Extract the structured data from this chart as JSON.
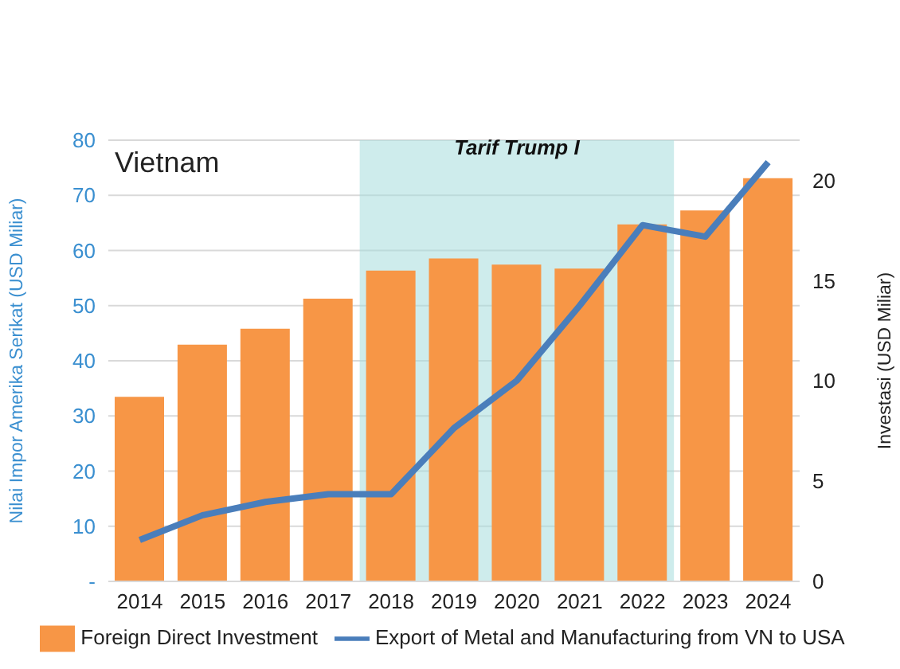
{
  "chart_data": {
    "type": "bar",
    "title": "Vietnam",
    "ylabel": "Nilai Impor Amerika Serikat (USD Miliar)",
    "y2label": "Investasi (USD Miliar)",
    "categories": [
      "2014",
      "2015",
      "2016",
      "2017",
      "2018",
      "2019",
      "2020",
      "2021",
      "2022",
      "2023",
      "2024"
    ],
    "series": [
      {
        "name": "Foreign Direct Investment",
        "axis": "y2",
        "color": "#f79646",
        "values": [
          9.2,
          11.8,
          12.6,
          14.1,
          15.5,
          16.1,
          15.8,
          15.6,
          17.8,
          18.5,
          20.1
        ]
      },
      {
        "name": "Export of Metal and Manufacturing from VN to USA",
        "type": "line",
        "axis": "y",
        "color": "#4a7ebb",
        "values": [
          7.5,
          12,
          14.4,
          15.8,
          15.8,
          27.8,
          36.4,
          50,
          64.6,
          62.5,
          76
        ]
      }
    ],
    "ylim": [
      0,
      80
    ],
    "yticks": [
      {
        "value": 0,
        "label": "-"
      },
      10,
      20,
      30,
      40,
      50,
      60,
      70,
      80
    ],
    "y2lim": [
      0,
      22
    ],
    "y2ticks": [
      0,
      5,
      10,
      15,
      20
    ],
    "bands": [
      {
        "axis": "x",
        "from": "2018",
        "to": "2022",
        "label": "Tarif Trump I",
        "color": "#a6dcdc"
      }
    ],
    "grid": "y",
    "legend": "bottom"
  }
}
